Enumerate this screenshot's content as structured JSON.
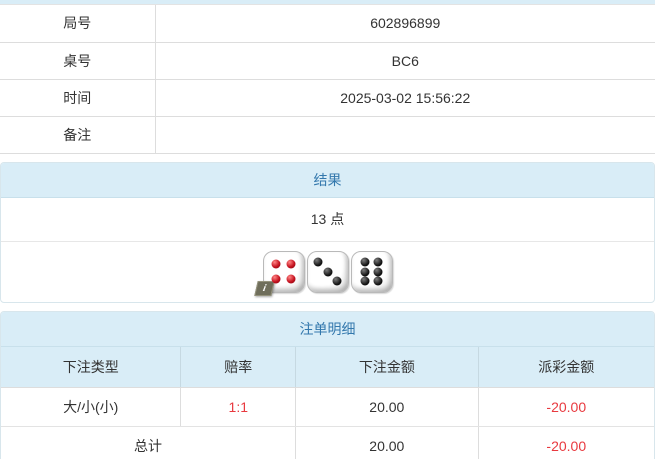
{
  "colors": {
    "header_bg": "#d9edf7",
    "header_text": "#3378ad",
    "negative_red": "#e8393f",
    "border": "#dddddd",
    "text": "#333333"
  },
  "info_table": {
    "rows": [
      {
        "label": "局号",
        "value": "602896899"
      },
      {
        "label": "桌号",
        "value": "BC6"
      },
      {
        "label": "时间",
        "value": "2025-03-02 15:56:22"
      },
      {
        "label": "备注",
        "value": ""
      }
    ]
  },
  "result_panel": {
    "title": "结果",
    "points": "13 点",
    "info_icon": "i",
    "dice": [
      {
        "value": 4,
        "pip_color": "red"
      },
      {
        "value": 3,
        "pip_color": "black"
      },
      {
        "value": 6,
        "pip_color": "black"
      }
    ]
  },
  "bets_panel": {
    "title": "注单明细",
    "columns": [
      "下注类型",
      "赔率",
      "下注金额",
      "派彩金额"
    ],
    "rows": [
      {
        "bet_type": "大/小(小)",
        "odds": "1:1",
        "bet_amount": "20.00",
        "payout": "-20.00"
      }
    ],
    "total": {
      "label": "总计",
      "bet_amount": "20.00",
      "payout": "-20.00"
    }
  }
}
